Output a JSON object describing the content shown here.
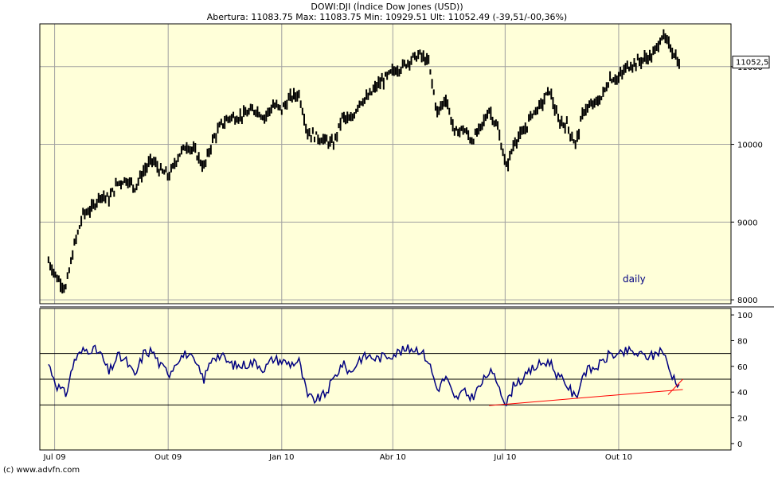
{
  "header": {
    "title": "DOWI:DJI (Índice Dow Jones (USD))",
    "stats": "Abertura: 11083.75 Max: 11083.75 Min: 10929.51 Ult: 11052.49 (-39,51/-00,36%)"
  },
  "footer": {
    "copyright": "(c) www.advfn.com"
  },
  "colors": {
    "background": "#ffffd9",
    "price": "#000000",
    "rsi": "#000080",
    "trend": "#ff0000",
    "grid": "#a0a0a0"
  },
  "chart_data": [
    {
      "type": "line",
      "subtype": "ohlc-bars",
      "annotation": "daily",
      "last_value_label": "11052,5",
      "ylim": [
        7950,
        11550
      ],
      "yticks": [
        8000,
        9000,
        10000,
        11000
      ],
      "x_tick_labels": [
        "Jul 09",
        "Out 09",
        "Jan 10",
        "Abr 10",
        "Jul 10",
        "Out 10"
      ],
      "x": [
        "2009-06-26",
        "2009-07-03",
        "2009-07-10",
        "2009-07-17",
        "2009-07-24",
        "2009-07-31",
        "2009-08-07",
        "2009-08-14",
        "2009-08-21",
        "2009-08-28",
        "2009-09-04",
        "2009-09-11",
        "2009-09-18",
        "2009-09-25",
        "2009-10-02",
        "2009-10-09",
        "2009-10-16",
        "2009-10-23",
        "2009-10-30",
        "2009-11-06",
        "2009-11-13",
        "2009-11-20",
        "2009-11-27",
        "2009-12-04",
        "2009-12-11",
        "2009-12-18",
        "2009-12-25",
        "2010-01-01",
        "2010-01-08",
        "2010-01-15",
        "2010-01-22",
        "2010-01-29",
        "2010-02-05",
        "2010-02-12",
        "2010-02-19",
        "2010-02-26",
        "2010-03-05",
        "2010-03-12",
        "2010-03-19",
        "2010-03-26",
        "2010-04-02",
        "2010-04-09",
        "2010-04-16",
        "2010-04-23",
        "2010-04-30",
        "2010-05-07",
        "2010-05-14",
        "2010-05-21",
        "2010-05-28",
        "2010-06-04",
        "2010-06-11",
        "2010-06-18",
        "2010-06-25",
        "2010-07-02",
        "2010-07-09",
        "2010-07-16",
        "2010-07-23",
        "2010-07-30",
        "2010-08-06",
        "2010-08-13",
        "2010-08-20",
        "2010-08-27",
        "2010-09-03",
        "2010-09-10",
        "2010-09-17",
        "2010-09-24",
        "2010-10-01",
        "2010-10-08",
        "2010-10-15",
        "2010-10-22",
        "2010-10-29",
        "2010-11-05",
        "2010-11-12",
        "2010-11-19"
      ],
      "values": [
        8500,
        8280,
        8150,
        8700,
        9100,
        9170,
        9350,
        9300,
        9500,
        9550,
        9450,
        9650,
        9800,
        9650,
        9600,
        9850,
        9990,
        9900,
        9700,
        10050,
        10250,
        10350,
        10350,
        10400,
        10450,
        10350,
        10500,
        10450,
        10600,
        10650,
        10150,
        10100,
        10050,
        10000,
        10350,
        10300,
        10550,
        10600,
        10750,
        10850,
        10950,
        11000,
        11100,
        11150,
        11050,
        10400,
        10600,
        10150,
        10200,
        10050,
        10200,
        10450,
        10200,
        9700,
        10050,
        10150,
        10400,
        10500,
        10700,
        10300,
        10250,
        10000,
        10450,
        10500,
        10600,
        10850,
        10850,
        11000,
        11050,
        11100,
        11150,
        11400,
        11250,
        11050
      ]
    },
    {
      "type": "line",
      "indicator": "RSI",
      "ylim": [
        -5,
        105
      ],
      "yticks": [
        0,
        20,
        40,
        60,
        80,
        100
      ],
      "reference_lines": [
        30,
        50,
        70
      ],
      "values": [
        62,
        45,
        38,
        65,
        72,
        74,
        70,
        55,
        68,
        64,
        52,
        70,
        72,
        60,
        55,
        66,
        70,
        62,
        50,
        68,
        68,
        62,
        60,
        62,
        63,
        58,
        66,
        64,
        62,
        64,
        36,
        34,
        38,
        50,
        62,
        55,
        66,
        68,
        66,
        68,
        70,
        72,
        74,
        73,
        64,
        42,
        52,
        34,
        40,
        36,
        45,
        56,
        48,
        30,
        48,
        50,
        58,
        62,
        64,
        52,
        46,
        35,
        56,
        58,
        62,
        70,
        68,
        72,
        70,
        68,
        68,
        74,
        55,
        46
      ],
      "trend_lines": [
        {
          "from": [
            "2010-06-18",
            29.5
          ],
          "to": [
            "2010-11-22",
            42
          ]
        },
        {
          "from": [
            "2010-11-10",
            38
          ],
          "to": [
            "2010-11-22",
            50
          ]
        }
      ]
    }
  ]
}
